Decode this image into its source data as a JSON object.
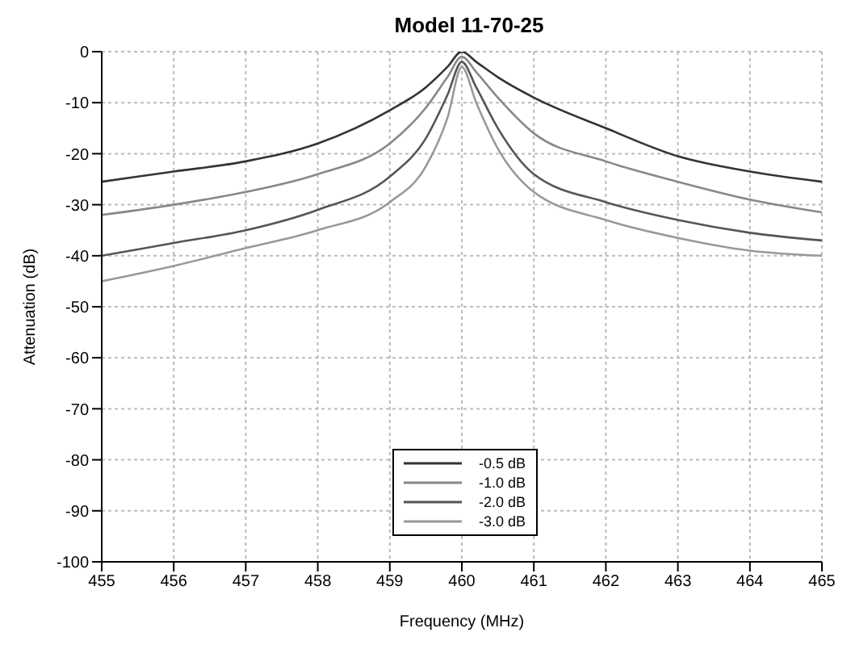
{
  "chart_data": {
    "type": "line",
    "title": "Model 11-70-25",
    "xlabel": "Frequency (MHz)",
    "ylabel": "Attenuation (dB)",
    "x": [
      455,
      456,
      457,
      458,
      459,
      459.5,
      459.8,
      460,
      460.2,
      460.5,
      461,
      462,
      463,
      464,
      465
    ],
    "series": [
      {
        "name": "-0.5 dB",
        "color": "#333333",
        "values": [
          -25.5,
          -23.5,
          -21.5,
          -18,
          -11.5,
          -7,
          -3,
          0,
          -2,
          -5,
          -9,
          -15,
          -20.5,
          -23.5,
          -25.5
        ]
      },
      {
        "name": "-1.0 dB",
        "color": "#888888",
        "values": [
          -32,
          -30,
          -27.5,
          -24,
          -18,
          -11,
          -5,
          -1,
          -4,
          -9,
          -16,
          -21.5,
          -25.5,
          -29,
          -31.5
        ]
      },
      {
        "name": "-2.0 dB",
        "color": "#555555",
        "values": [
          -40,
          -37.5,
          -35,
          -31,
          -24.5,
          -17,
          -8.5,
          -2,
          -7,
          -15,
          -24,
          -29.5,
          -33,
          -35.5,
          -37
        ]
      },
      {
        "name": "-3.0 dB",
        "color": "#999999",
        "values": [
          -45,
          -42,
          -38.5,
          -35,
          -29.5,
          -22.5,
          -13,
          -3,
          -10,
          -19,
          -27.5,
          -33,
          -36.5,
          -39,
          -40
        ]
      }
    ],
    "xlim": [
      455,
      465
    ],
    "xticks": [
      455,
      456,
      457,
      458,
      459,
      460,
      461,
      462,
      463,
      464,
      465
    ],
    "ylim": [
      -100,
      0
    ],
    "yticks": [
      -100,
      -90,
      -80,
      -70,
      -60,
      -50,
      -40,
      -30,
      -20,
      -10,
      0
    ],
    "grid": true,
    "legend": "bottom",
    "line_style": "solid",
    "marker": "none"
  }
}
